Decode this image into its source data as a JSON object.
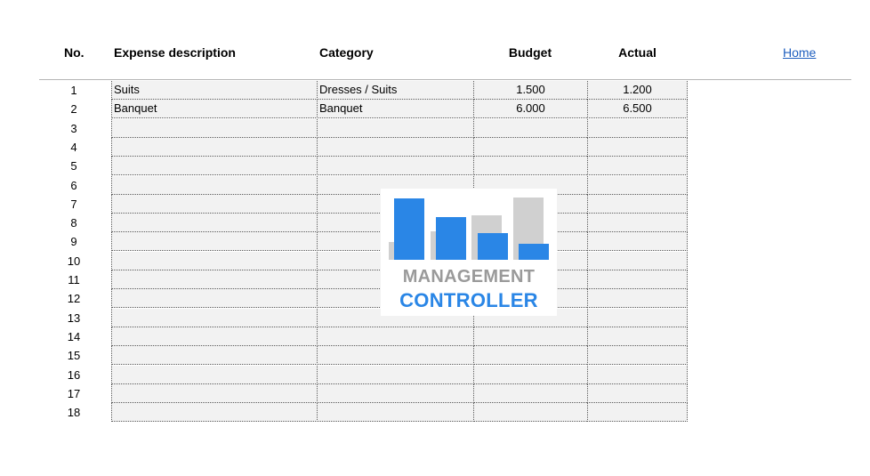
{
  "header": {
    "no": "No.",
    "description": "Expense description",
    "category": "Category",
    "budget": "Budget",
    "actual": "Actual"
  },
  "home_link": "Home",
  "rows": [
    {
      "no": "1",
      "description": "Suits",
      "category": "Dresses / Suits",
      "budget": "1.500",
      "actual": "1.200"
    },
    {
      "no": "2",
      "description": "Banquet",
      "category": "Banquet",
      "budget": "6.000",
      "actual": "6.500"
    },
    {
      "no": "3",
      "description": "",
      "category": "",
      "budget": "",
      "actual": ""
    },
    {
      "no": "4",
      "description": "",
      "category": "",
      "budget": "",
      "actual": ""
    },
    {
      "no": "5",
      "description": "",
      "category": "",
      "budget": "",
      "actual": ""
    },
    {
      "no": "6",
      "description": "",
      "category": "",
      "budget": "",
      "actual": ""
    },
    {
      "no": "7",
      "description": "",
      "category": "",
      "budget": "",
      "actual": ""
    },
    {
      "no": "8",
      "description": "",
      "category": "",
      "budget": "",
      "actual": ""
    },
    {
      "no": "9",
      "description": "",
      "category": "",
      "budget": "",
      "actual": ""
    },
    {
      "no": "10",
      "description": "",
      "category": "",
      "budget": "",
      "actual": ""
    },
    {
      "no": "11",
      "description": "",
      "category": "",
      "budget": "",
      "actual": ""
    },
    {
      "no": "12",
      "description": "",
      "category": "",
      "budget": "",
      "actual": ""
    },
    {
      "no": "13",
      "description": "",
      "category": "",
      "budget": "",
      "actual": ""
    },
    {
      "no": "14",
      "description": "",
      "category": "",
      "budget": "",
      "actual": ""
    },
    {
      "no": "15",
      "description": "",
      "category": "",
      "budget": "",
      "actual": ""
    },
    {
      "no": "16",
      "description": "",
      "category": "",
      "budget": "",
      "actual": ""
    },
    {
      "no": "17",
      "description": "",
      "category": "",
      "budget": "",
      "actual": ""
    },
    {
      "no": "18",
      "description": "",
      "category": "",
      "budget": "",
      "actual": ""
    }
  ],
  "logo": {
    "line1": "MANAGEMENT",
    "line2": "CONTROLLER",
    "colors": {
      "gray": "#d0d0d0",
      "blue": "#2a86e6",
      "text_gray": "#9a9a9a"
    }
  },
  "colors": {
    "cell_background": "#f2f2f2",
    "link": "#1f5fbf",
    "divider": "#b5b5b5"
  }
}
